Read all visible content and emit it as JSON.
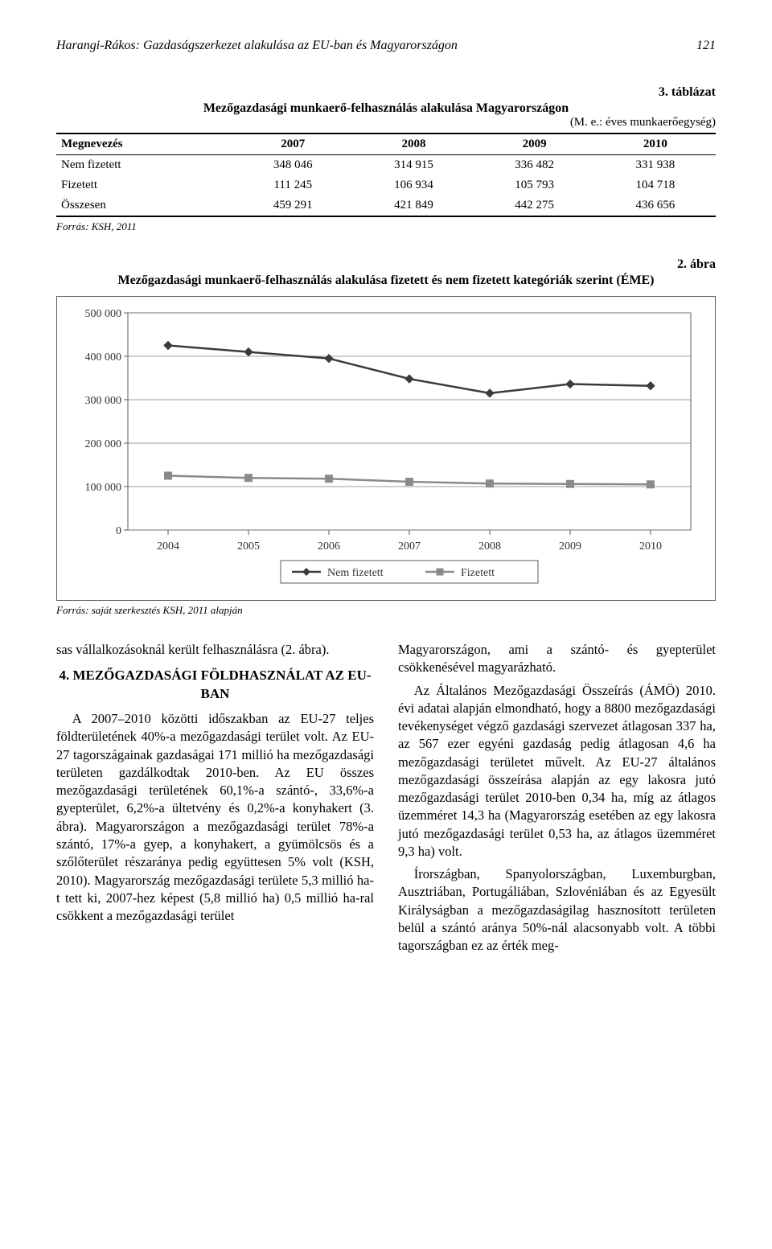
{
  "header": {
    "running_title": "Harangi-Rákos: Gazdaságszerkezet alakulása az EU-ban és Magyarországon",
    "page_number": "121"
  },
  "table3": {
    "label": "3. táblázat",
    "title": "Mezőgazdasági munkaerő-felhasználás alakulása Magyarországon",
    "unit": "(M. e.: éves munkaerőegység)",
    "columns": [
      "Megnevezés",
      "2007",
      "2008",
      "2009",
      "2010"
    ],
    "rows": [
      [
        "Nem fizetett",
        "348 046",
        "314 915",
        "336 482",
        "331 938"
      ],
      [
        "Fizetett",
        "111 245",
        "106 934",
        "105 793",
        "104 718"
      ],
      [
        "Összesen",
        "459 291",
        "421 849",
        "442 275",
        "436 656"
      ]
    ],
    "source": "Forrás: KSH, 2011"
  },
  "figure2": {
    "label": "2. ábra",
    "title": "Mezőgazdasági munkaerő-felhasználás alakulása fizetett és nem fizetett kategóriák szerint (ÉME)",
    "type": "line",
    "categories": [
      "2004",
      "2005",
      "2006",
      "2007",
      "2008",
      "2009",
      "2010"
    ],
    "series": [
      {
        "name": "Nem fizetett",
        "values": [
          425000,
          410000,
          395000,
          348000,
          315000,
          336000,
          332000
        ],
        "color": "#3a3a3a",
        "marker": "diamond",
        "marker_size": 10
      },
      {
        "name": "Fizetett",
        "values": [
          125000,
          120000,
          118000,
          111000,
          107000,
          106000,
          105000
        ],
        "color": "#8a8a8a",
        "marker": "square",
        "marker_size": 9
      }
    ],
    "ylim": [
      0,
      500000
    ],
    "ytick_step": 100000,
    "ytick_labels": [
      "0",
      "100 000",
      "200 000",
      "300 000",
      "400 000",
      "500 000"
    ],
    "background_color": "#ffffff",
    "grid_color": "#7a7a7a",
    "axis_color": "#5b5b5b",
    "line_width": 2.5,
    "tick_fontsize": 14,
    "legend_fontsize": 14,
    "legend_labels": [
      "Nem fizetett",
      "Fizetett"
    ],
    "source": "Forrás: saját szerkesztés KSH, 2011 alapján"
  },
  "body": {
    "p1": "sas vállalkozásoknál került felhasználásra (2. ábra).",
    "h1": "4. MEZŐGAZDASÁGI FÖLDHASZNÁLAT AZ EU-BAN",
    "p2": "A 2007–2010 közötti időszakban az EU-27 teljes földterületének 40%-a mezőgazdasági terület volt. Az EU-27 tagországainak gazdaságai 171 millió ha mezőgazdasági területen gazdálkodtak 2010-ben. Az EU összes mezőgazdasági területének 60,1%-a szántó-, 33,6%-a gyepterület, 6,2%-a ültetvény és 0,2%-a konyhakert (3. ábra). Magyarországon a mezőgazdasági terület 78%-a szántó, 17%-a gyep, a konyhakert, a gyümölcsös és a szőlőterület részaránya pedig együttesen 5% volt (KSH, 2010). Magyarország mezőgazdasági területe 5,3 millió ha-t tett ki, 2007-hez képest (5,8 millió ha) 0,5 millió ha-ral csökkent a mezőgazdasági terület",
    "p3": "Magyarországon, ami a szántó- és gyepterület csökkenésével magyarázható.",
    "p4": "Az Általános Mezőgazdasági Összeírás (ÁMÖ) 2010. évi adatai alapján elmondható, hogy a 8800 mezőgazdasági tevékenységet végző gazdasági szervezet átlagosan 337 ha, az 567 ezer egyéni gazdaság pedig átlagosan 4,6 ha mezőgazdasági területet művelt. Az EU-27 általános mezőgazdasági összeírása alapján az egy lakosra jutó mezőgazdasági terület 2010-ben 0,34 ha, míg az átlagos üzemméret 14,3 ha (Magyarország esetében az egy lakosra jutó mezőgazdasági terület 0,53 ha, az átlagos üzemméret 9,3 ha) volt.",
    "p5": "Írországban, Spanyolországban, Luxemburgban, Ausztriában, Portugáliában, Szlovéniában és az Egyesült Királyságban a mezőgazdaságilag hasznosított területen belül a szántó aránya 50%-nál alacsonyabb volt. A többi tagországban ez az érték meg-"
  }
}
